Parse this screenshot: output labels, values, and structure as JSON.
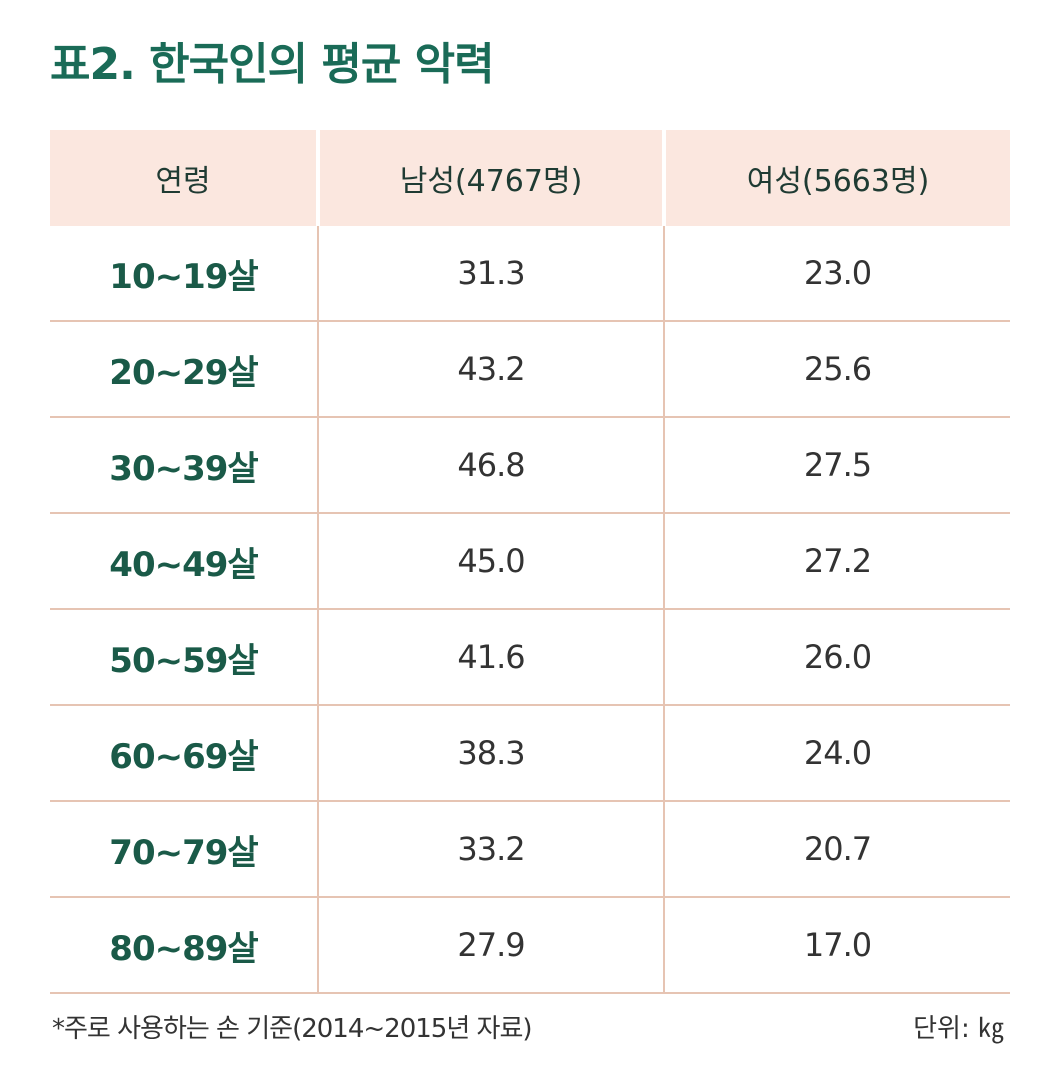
{
  "title": "표2. 한국인의 평균 악력",
  "table": {
    "headers": [
      "연령",
      "남성(4767명)",
      "여성(5663명)"
    ],
    "rows": [
      {
        "age": "10~19살",
        "male": "31.3",
        "female": "23.0"
      },
      {
        "age": "20~29살",
        "male": "43.2",
        "female": "25.6"
      },
      {
        "age": "30~39살",
        "male": "46.8",
        "female": "27.5"
      },
      {
        "age": "40~49살",
        "male": "45.0",
        "female": "27.2"
      },
      {
        "age": "50~59살",
        "male": "41.6",
        "female": "26.0"
      },
      {
        "age": "60~69살",
        "male": "38.3",
        "female": "24.0"
      },
      {
        "age": "70~79살",
        "male": "33.2",
        "female": "20.7"
      },
      {
        "age": "80~89살",
        "male": "27.9",
        "female": "17.0"
      }
    ]
  },
  "footnote": "*주로 사용하는 손 기준(2014~2015년 자료)",
  "unit": "단위: ㎏",
  "colors": {
    "title": "#1a6b57",
    "header_bg": "#fbe7df",
    "grid": "#e6c4b3",
    "age_text": "#1a5a48"
  }
}
